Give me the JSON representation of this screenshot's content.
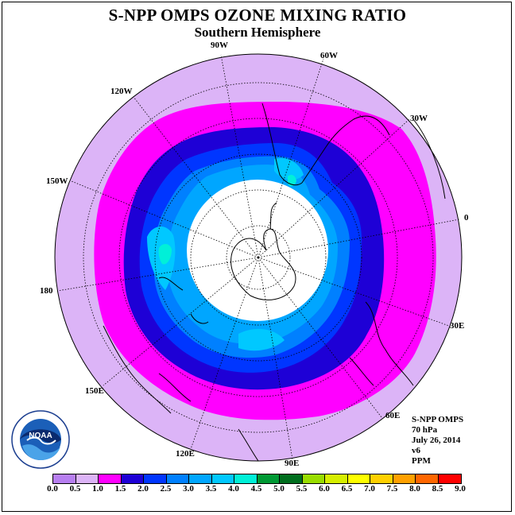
{
  "title": "S-NPP OMPS OZONE MIXING RATIO",
  "subtitle": "Southern Hemisphere",
  "longitude_labels": [
    "90W",
    "60W",
    "30W",
    "0",
    "30E",
    "60E",
    "90E",
    "120E",
    "150E",
    "180",
    "150W",
    "120W"
  ],
  "info": {
    "instrument": "S-NPP OMPS",
    "pressure": "70 hPa",
    "date": "July 26, 2014",
    "version": "v6",
    "units": "PPM"
  },
  "logo": {
    "text": "NOAA",
    "icon": "noaa-logo"
  },
  "colorbar": {
    "ticks": [
      "0.0",
      "0.5",
      "1.0",
      "1.5",
      "2.0",
      "2.5",
      "3.0",
      "3.5",
      "4.0",
      "4.5",
      "5.0",
      "5.5",
      "6.0",
      "6.5",
      "7.0",
      "7.5",
      "8.0",
      "8.5",
      "9.0"
    ],
    "colors": [
      "#b77ff0",
      "#dcb4f7",
      "#ff00ff",
      "#1e00d6",
      "#0036ff",
      "#0080ff",
      "#00a6ff",
      "#00c8ff",
      "#00f0d8",
      "#009934",
      "#006e1e",
      "#99dd00",
      "#d6ee00",
      "#ffff00",
      "#ffd000",
      "#ffa000",
      "#ff6600",
      "#ff0000",
      "#8c5a3c"
    ]
  }
}
